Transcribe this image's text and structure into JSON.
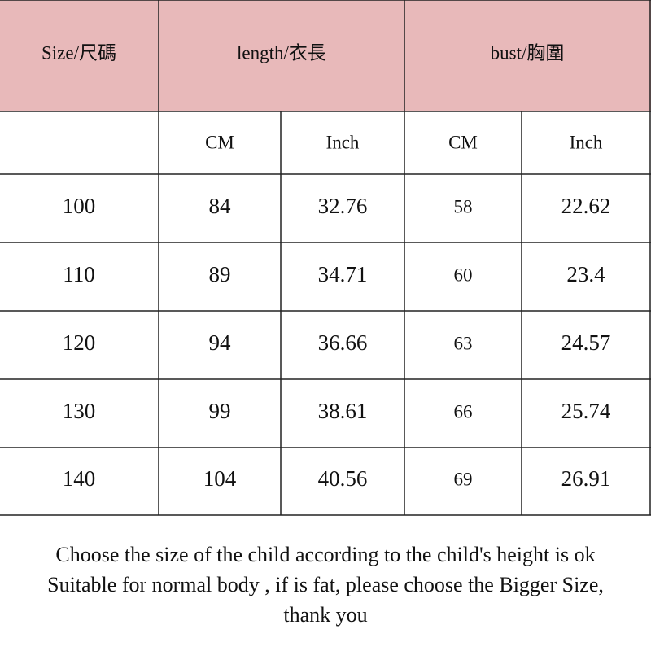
{
  "header": {
    "size": "Size/尺碼",
    "length": "length/衣長",
    "bust": "bust/胸圍"
  },
  "units": [
    "CM",
    "Inch",
    "CM",
    "Inch"
  ],
  "rows": [
    [
      100,
      84,
      32.76,
      58,
      22.62
    ],
    [
      110,
      89,
      34.71,
      60,
      23.4
    ],
    [
      120,
      94,
      36.66,
      63,
      24.57
    ],
    [
      130,
      99,
      38.61,
      66,
      25.74
    ],
    [
      140,
      104,
      40.56,
      69,
      26.91
    ]
  ],
  "note": [
    "Choose the size of the child according to the child's height is ok",
    "Suitable for normal body , if is fat, please choose the Bigger Size,",
    "thank you"
  ]
}
